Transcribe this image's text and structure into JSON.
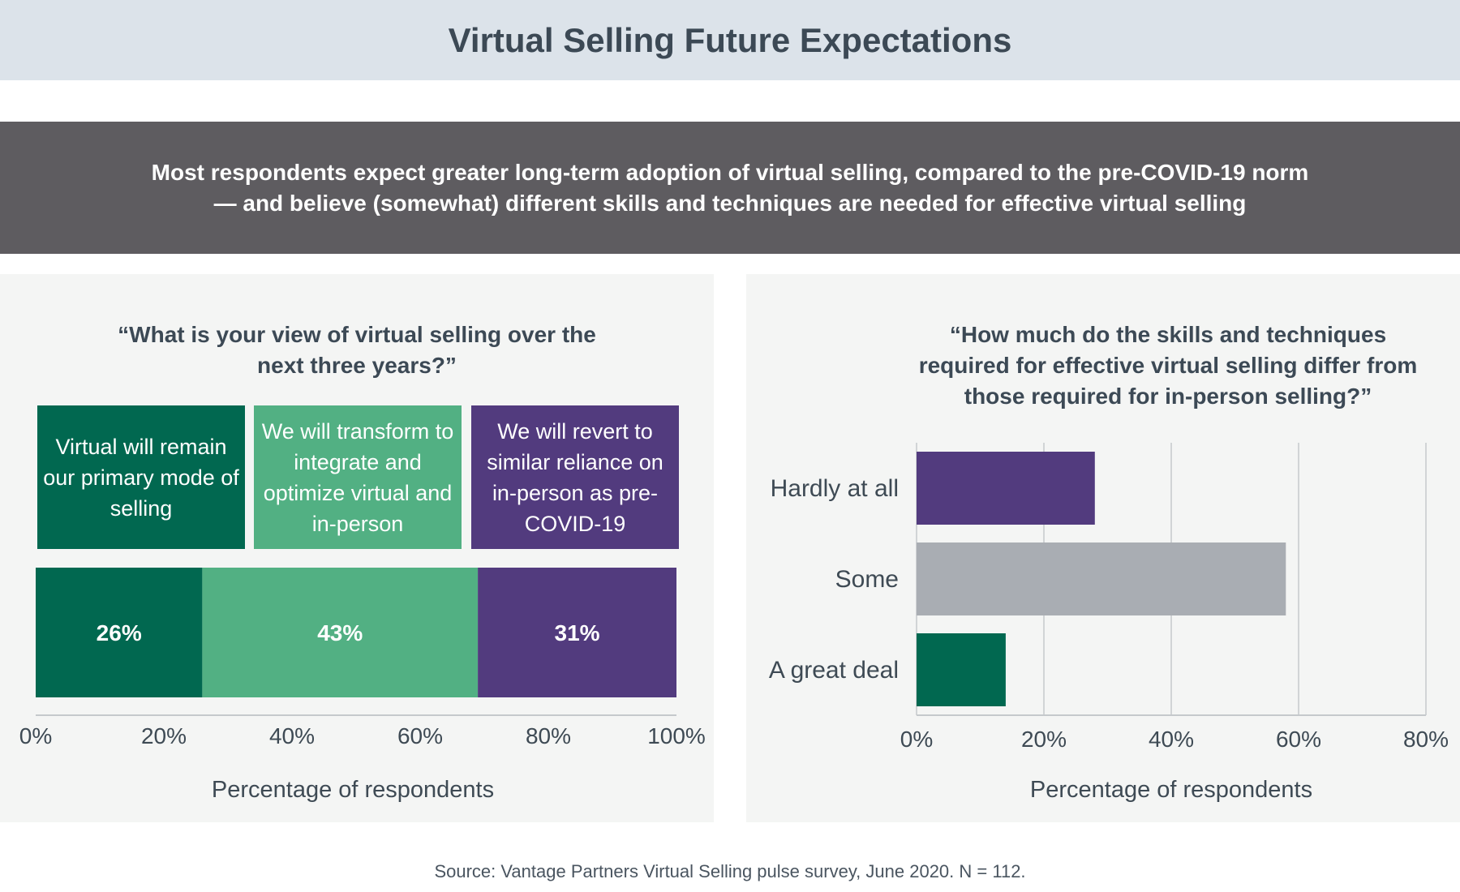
{
  "header": {
    "title": "Virtual Selling Future Expectations",
    "subtitle": "Most respondents expect greater long-term adoption of virtual selling, compared to the pre-COVID-19 norm — and believe (somewhat) different skills and techniques are needed for effective virtual selling"
  },
  "colors": {
    "dark_green": "#016850",
    "light_green": "#52b083",
    "purple": "#523b7e",
    "gray": "#a9adb3",
    "grid": "#c5c9cc"
  },
  "chart_data": [
    {
      "type": "bar",
      "stacked": true,
      "orientation": "horizontal",
      "title": "“What is your view of virtual selling over the next three years?”",
      "xlabel": "Percentage of respondents",
      "xlim": [
        0,
        100
      ],
      "xticks": [
        "0%",
        "20%",
        "40%",
        "60%",
        "80%",
        "100%"
      ],
      "grid": false,
      "series": [
        {
          "name": "Virtual will remain our primary mode of selling",
          "value": 26,
          "label": "26%",
          "color": "#016850"
        },
        {
          "name": "We will transform to integrate and optimize virtual and in-person",
          "value": 43,
          "label": "43%",
          "color": "#52b083"
        },
        {
          "name": "We will revert to similar reliance on in-person as pre-COVID-19",
          "value": 31,
          "label": "31%",
          "color": "#523b7e"
        }
      ]
    },
    {
      "type": "bar",
      "orientation": "horizontal",
      "title": "“How much do the skills and techniques required for effective virtual selling differ from those required for in-person selling?”",
      "xlabel": "Percentage of respondents",
      "xlim": [
        0,
        80
      ],
      "xticks": [
        "0%",
        "20%",
        "40%",
        "60%",
        "80%"
      ],
      "grid": true,
      "categories": [
        "Hardly at all",
        "Some",
        "A great deal"
      ],
      "values": [
        28,
        58,
        14
      ],
      "colors": [
        "#523b7e",
        "#a9adb3",
        "#016850"
      ]
    }
  ],
  "footer": {
    "source": "Source: Vantage Partners Virtual Selling pulse survey, June 2020. N = 112."
  }
}
